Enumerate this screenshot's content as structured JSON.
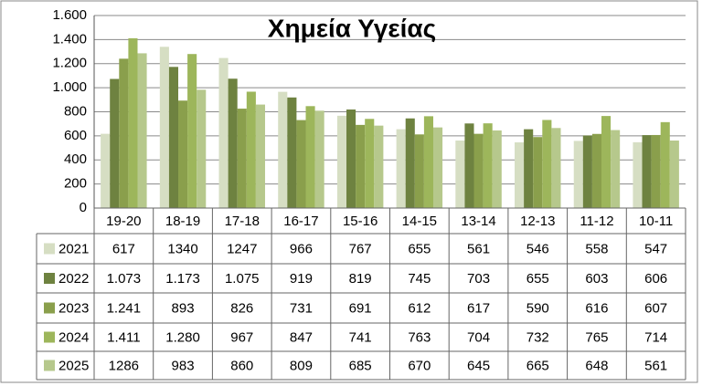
{
  "chart_data": {
    "type": "bar",
    "title": "Χημεία Υγείας",
    "categories": [
      "19-20",
      "18-19",
      "17-18",
      "16-17",
      "15-16",
      "14-15",
      "13-14",
      "12-13",
      "11-12",
      "10-11"
    ],
    "series": [
      {
        "name": "2021",
        "color": "#d6dec3",
        "values": [
          617,
          1340,
          1247,
          966,
          767,
          655,
          561,
          546,
          558,
          547
        ]
      },
      {
        "name": "2022",
        "color": "#6e8240",
        "values": [
          1073,
          1173,
          1075,
          919,
          819,
          745,
          703,
          655,
          603,
          606
        ],
        "value_labels": [
          "1.073",
          "1.173",
          "1.075",
          "919",
          "819",
          "745",
          "703",
          "655",
          "603",
          "606"
        ]
      },
      {
        "name": "2023",
        "color": "#8a9f4c",
        "values": [
          1241,
          893,
          826,
          731,
          691,
          612,
          617,
          590,
          616,
          607
        ],
        "value_labels": [
          "1.241",
          "893",
          "826",
          "731",
          "691",
          "612",
          "617",
          "590",
          "616",
          "607"
        ]
      },
      {
        "name": "2024",
        "color": "#9db65b",
        "values": [
          1411,
          1280,
          967,
          847,
          741,
          763,
          704,
          732,
          765,
          714
        ],
        "value_labels": [
          "1.411",
          "1.280",
          "967",
          "847",
          "741",
          "763",
          "704",
          "732",
          "765",
          "714"
        ]
      },
      {
        "name": "2025",
        "color": "#b6c88c",
        "values": [
          1286,
          983,
          860,
          809,
          685,
          670,
          645,
          665,
          648,
          561
        ]
      }
    ],
    "ylim": [
      0,
      1600
    ],
    "yticks": [
      0,
      200,
      400,
      600,
      800,
      {
        "value": 1000,
        "label": "1.000"
      },
      {
        "value": 1200,
        "label": "1.200"
      },
      {
        "value": 1400,
        "label": "1.400"
      },
      {
        "value": 1600,
        "label": "1.600"
      }
    ],
    "grid": true
  }
}
